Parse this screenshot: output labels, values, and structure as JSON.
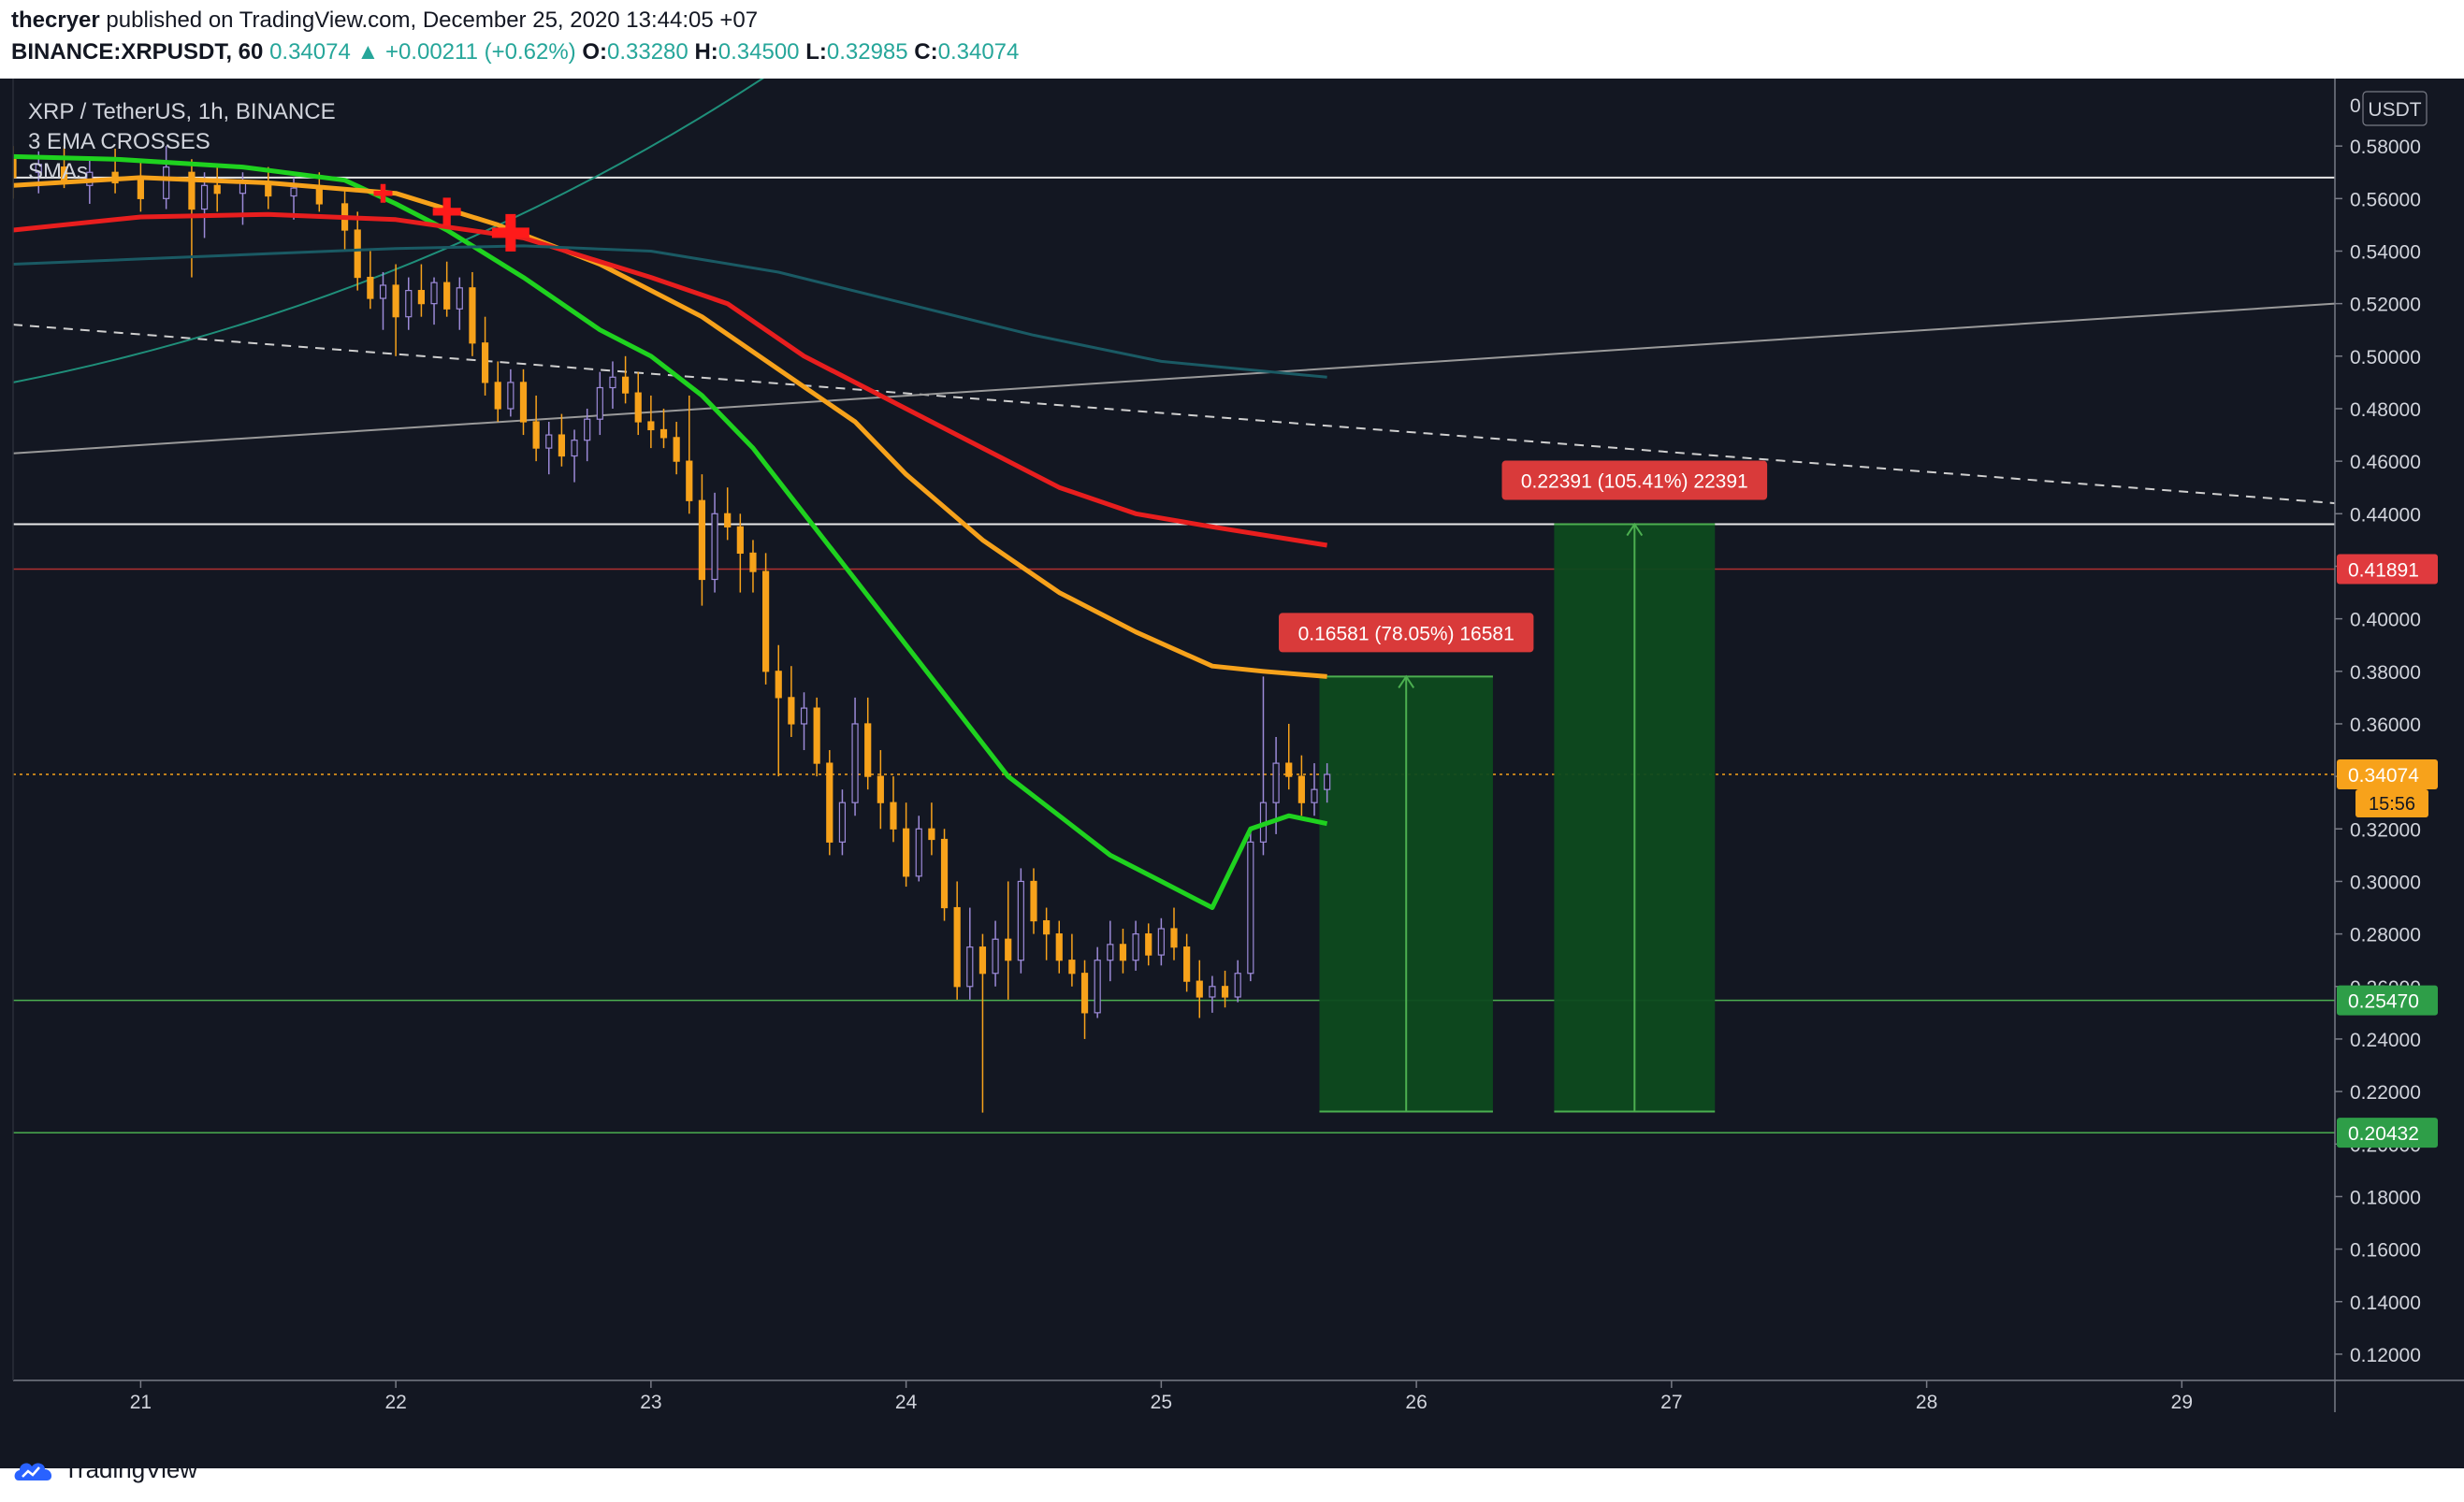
{
  "header": {
    "author": "thecryer",
    "published_text": "published on TradingView.com, December 25, 2020 13:44:05 +07",
    "symbol": "BINANCE:XRPUSDT, 60",
    "last": "0.34074",
    "change": "+0.00211 (+0.62%)",
    "o_label": "O:",
    "o_value": "0.33280",
    "h_label": "H:",
    "h_value": "0.34500",
    "l_label": "L:",
    "l_value": "0.32985",
    "c_label": "C:",
    "c_value": "0.34074"
  },
  "legend": {
    "title": "XRP / TetherUS, 1h, BINANCE",
    "indicator1": "3 EMA CROSSES",
    "indicator2": "SMAs"
  },
  "price_axis": {
    "currency": "USDT",
    "top_label": "0"
  },
  "footer": {
    "brand": "TradingView"
  },
  "colors": {
    "background": "#131722",
    "up": "#9c8ad8",
    "down": "#f7a21b",
    "ema_green": "#1fd21f",
    "ema_orange": "#f7a21b",
    "ema_red": "#e81e1e",
    "sma_teal": "#1a5a64",
    "target_fill": "#0d4a1f"
  },
  "chart_data": {
    "type": "candlestick",
    "symbol": "BINANCE:XRPUSDT",
    "timeframe": "1h",
    "ylim": [
      0.11,
      0.6
    ],
    "y_ticks": [
      "0.12000",
      "0.14000",
      "0.16000",
      "0.18000",
      "0.20000",
      "0.22000",
      "0.24000",
      "0.26000",
      "0.28000",
      "0.30000",
      "0.32000",
      "0.34000",
      "0.36000",
      "0.38000",
      "0.40000",
      "0.42000",
      "0.44000",
      "0.46000",
      "0.48000",
      "0.50000",
      "0.52000",
      "0.54000",
      "0.56000",
      "0.58000"
    ],
    "x_ticks": [
      {
        "label": "21",
        "x": 21.0
      },
      {
        "label": "22",
        "x": 22.0
      },
      {
        "label": "23",
        "x": 23.0
      },
      {
        "label": "24",
        "x": 24.0
      },
      {
        "label": "25",
        "x": 25.0
      },
      {
        "label": "26",
        "x": 26.0
      },
      {
        "label": "27",
        "x": 27.0
      },
      {
        "label": "28",
        "x": 28.0
      },
      {
        "label": "29",
        "x": 29.0
      }
    ],
    "xlim": [
      20.5,
      29.6
    ],
    "price_markers": [
      {
        "label": "0.41891",
        "value": 0.41891,
        "color": "#e03a3e",
        "line": "#b03030"
      },
      {
        "label": "0.34074",
        "value": 0.34074,
        "color": "#f7a21b",
        "line": "#f7a21b",
        "timer": "15:56"
      },
      {
        "label": "0.25470",
        "value": 0.2547,
        "color": "#2e9e48",
        "line": "#4caf50"
      },
      {
        "label": "0.20432",
        "value": 0.20432,
        "color": "#2e9e48",
        "line": "#4caf50"
      }
    ],
    "horizontal_lines": [
      {
        "value": 0.568,
        "color": "#e8e8e8"
      },
      {
        "value": 0.436,
        "color": "#e8e8e8"
      }
    ],
    "measure_boxes": [
      {
        "x0": 25.62,
        "x1": 26.3,
        "y0": 0.2124,
        "y1": 0.378,
        "label": "0.16581 (78.05%) 16581"
      },
      {
        "x0": 26.54,
        "x1": 27.17,
        "y0": 0.2124,
        "y1": 0.436,
        "label": "0.22391 (105.41%) 22391"
      }
    ],
    "candles": [
      [
        20.5,
        0.575,
        0.58,
        0.56,
        0.568
      ],
      [
        20.6,
        0.57,
        0.578,
        0.562,
        0.573
      ],
      [
        20.7,
        0.572,
        0.58,
        0.564,
        0.566
      ],
      [
        20.8,
        0.565,
        0.575,
        0.558,
        0.57
      ],
      [
        20.9,
        0.57,
        0.579,
        0.562,
        0.566
      ],
      [
        21.0,
        0.567,
        0.574,
        0.555,
        0.56
      ],
      [
        21.1,
        0.56,
        0.58,
        0.556,
        0.572
      ],
      [
        21.2,
        0.57,
        0.575,
        0.53,
        0.556
      ],
      [
        21.25,
        0.556,
        0.57,
        0.545,
        0.565
      ],
      [
        21.3,
        0.565,
        0.572,
        0.555,
        0.562
      ],
      [
        21.4,
        0.562,
        0.57,
        0.55,
        0.566
      ],
      [
        21.5,
        0.566,
        0.572,
        0.556,
        0.561
      ],
      [
        21.6,
        0.561,
        0.568,
        0.552,
        0.564
      ],
      [
        21.7,
        0.564,
        0.57,
        0.555,
        0.558
      ],
      [
        21.8,
        0.558,
        0.563,
        0.54,
        0.548
      ],
      [
        21.85,
        0.548,
        0.555,
        0.525,
        0.53
      ],
      [
        21.9,
        0.53,
        0.54,
        0.518,
        0.522
      ],
      [
        21.95,
        0.522,
        0.532,
        0.51,
        0.527
      ],
      [
        22.0,
        0.527,
        0.535,
        0.5,
        0.515
      ],
      [
        22.05,
        0.515,
        0.53,
        0.51,
        0.525
      ],
      [
        22.1,
        0.525,
        0.535,
        0.515,
        0.52
      ],
      [
        22.15,
        0.52,
        0.53,
        0.512,
        0.528
      ],
      [
        22.2,
        0.528,
        0.536,
        0.515,
        0.518
      ],
      [
        22.25,
        0.518,
        0.53,
        0.51,
        0.526
      ],
      [
        22.3,
        0.526,
        0.532,
        0.5,
        0.505
      ],
      [
        22.35,
        0.505,
        0.515,
        0.485,
        0.49
      ],
      [
        22.4,
        0.49,
        0.498,
        0.475,
        0.48
      ],
      [
        22.45,
        0.48,
        0.495,
        0.477,
        0.49
      ],
      [
        22.5,
        0.49,
        0.495,
        0.47,
        0.475
      ],
      [
        22.55,
        0.475,
        0.485,
        0.46,
        0.465
      ],
      [
        22.6,
        0.465,
        0.475,
        0.455,
        0.47
      ],
      [
        22.65,
        0.47,
        0.478,
        0.458,
        0.462
      ],
      [
        22.7,
        0.462,
        0.472,
        0.452,
        0.468
      ],
      [
        22.75,
        0.468,
        0.48,
        0.46,
        0.476
      ],
      [
        22.8,
        0.476,
        0.494,
        0.47,
        0.488
      ],
      [
        22.85,
        0.488,
        0.498,
        0.48,
        0.492
      ],
      [
        22.9,
        0.492,
        0.5,
        0.482,
        0.486
      ],
      [
        22.95,
        0.486,
        0.494,
        0.47,
        0.475
      ],
      [
        23.0,
        0.475,
        0.485,
        0.465,
        0.472
      ],
      [
        23.05,
        0.472,
        0.48,
        0.465,
        0.469
      ],
      [
        23.1,
        0.469,
        0.475,
        0.455,
        0.46
      ],
      [
        23.15,
        0.46,
        0.485,
        0.44,
        0.445
      ],
      [
        23.2,
        0.445,
        0.455,
        0.405,
        0.415
      ],
      [
        23.25,
        0.415,
        0.448,
        0.41,
        0.44
      ],
      [
        23.3,
        0.44,
        0.45,
        0.43,
        0.435
      ],
      [
        23.35,
        0.435,
        0.44,
        0.41,
        0.425
      ],
      [
        23.4,
        0.425,
        0.43,
        0.41,
        0.418
      ],
      [
        23.45,
        0.418,
        0.425,
        0.375,
        0.38
      ],
      [
        23.5,
        0.38,
        0.39,
        0.34,
        0.37
      ],
      [
        23.55,
        0.37,
        0.382,
        0.355,
        0.36
      ],
      [
        23.6,
        0.36,
        0.372,
        0.35,
        0.366
      ],
      [
        23.65,
        0.366,
        0.37,
        0.34,
        0.345
      ],
      [
        23.7,
        0.345,
        0.35,
        0.31,
        0.315
      ],
      [
        23.75,
        0.315,
        0.335,
        0.31,
        0.33
      ],
      [
        23.8,
        0.33,
        0.37,
        0.325,
        0.36
      ],
      [
        23.85,
        0.36,
        0.37,
        0.335,
        0.34
      ],
      [
        23.9,
        0.34,
        0.35,
        0.32,
        0.33
      ],
      [
        23.95,
        0.33,
        0.34,
        0.315,
        0.32
      ],
      [
        24.0,
        0.32,
        0.33,
        0.298,
        0.302
      ],
      [
        24.05,
        0.302,
        0.325,
        0.3,
        0.32
      ],
      [
        24.1,
        0.32,
        0.33,
        0.31,
        0.316
      ],
      [
        24.15,
        0.316,
        0.32,
        0.285,
        0.29
      ],
      [
        24.2,
        0.29,
        0.3,
        0.255,
        0.26
      ],
      [
        24.25,
        0.26,
        0.29,
        0.255,
        0.275
      ],
      [
        24.3,
        0.275,
        0.28,
        0.212,
        0.265
      ],
      [
        24.35,
        0.265,
        0.285,
        0.26,
        0.278
      ],
      [
        24.4,
        0.278,
        0.3,
        0.255,
        0.27
      ],
      [
        24.45,
        0.27,
        0.305,
        0.265,
        0.3
      ],
      [
        24.5,
        0.3,
        0.305,
        0.28,
        0.285
      ],
      [
        24.55,
        0.285,
        0.29,
        0.27,
        0.28
      ],
      [
        24.6,
        0.28,
        0.285,
        0.265,
        0.27
      ],
      [
        24.65,
        0.27,
        0.28,
        0.26,
        0.265
      ],
      [
        24.7,
        0.265,
        0.27,
        0.24,
        0.25
      ],
      [
        24.75,
        0.25,
        0.275,
        0.248,
        0.27
      ],
      [
        24.8,
        0.27,
        0.285,
        0.262,
        0.276
      ],
      [
        24.85,
        0.276,
        0.282,
        0.265,
        0.27
      ],
      [
        24.9,
        0.27,
        0.285,
        0.266,
        0.28
      ],
      [
        24.95,
        0.28,
        0.284,
        0.268,
        0.272
      ],
      [
        25.0,
        0.272,
        0.286,
        0.268,
        0.282
      ],
      [
        25.05,
        0.282,
        0.29,
        0.27,
        0.275
      ],
      [
        25.1,
        0.275,
        0.28,
        0.258,
        0.262
      ],
      [
        25.15,
        0.262,
        0.27,
        0.248,
        0.256
      ],
      [
        25.2,
        0.256,
        0.264,
        0.25,
        0.26
      ],
      [
        25.25,
        0.26,
        0.266,
        0.252,
        0.256
      ],
      [
        25.3,
        0.256,
        0.27,
        0.254,
        0.265
      ],
      [
        25.35,
        0.265,
        0.32,
        0.262,
        0.315
      ],
      [
        25.4,
        0.315,
        0.378,
        0.31,
        0.33
      ],
      [
        25.45,
        0.33,
        0.355,
        0.318,
        0.345
      ],
      [
        25.5,
        0.345,
        0.36,
        0.335,
        0.34
      ],
      [
        25.55,
        0.34,
        0.348,
        0.325,
        0.33
      ],
      [
        25.6,
        0.33,
        0.345,
        0.325,
        0.335
      ],
      [
        25.65,
        0.335,
        0.345,
        0.33,
        0.34074
      ]
    ],
    "indicators": [
      {
        "name": "EMA green",
        "color": "#1fd21f",
        "width": 5,
        "points": [
          [
            20.5,
            0.576
          ],
          [
            20.9,
            0.575
          ],
          [
            21.4,
            0.572
          ],
          [
            21.8,
            0.567
          ],
          [
            22.0,
            0.558
          ],
          [
            22.2,
            0.548
          ],
          [
            22.5,
            0.53
          ],
          [
            22.8,
            0.51
          ],
          [
            23.0,
            0.5
          ],
          [
            23.2,
            0.485
          ],
          [
            23.4,
            0.465
          ],
          [
            23.6,
            0.44
          ],
          [
            23.8,
            0.415
          ],
          [
            24.0,
            0.39
          ],
          [
            24.2,
            0.365
          ],
          [
            24.4,
            0.34
          ],
          [
            24.6,
            0.325
          ],
          [
            24.8,
            0.31
          ],
          [
            25.0,
            0.3
          ],
          [
            25.2,
            0.29
          ],
          [
            25.35,
            0.32
          ],
          [
            25.5,
            0.325
          ],
          [
            25.65,
            0.322
          ]
        ]
      },
      {
        "name": "EMA orange",
        "color": "#f7a21b",
        "width": 5,
        "points": [
          [
            20.5,
            0.565
          ],
          [
            21.0,
            0.568
          ],
          [
            21.5,
            0.566
          ],
          [
            22.0,
            0.562
          ],
          [
            22.4,
            0.55
          ],
          [
            22.8,
            0.535
          ],
          [
            23.2,
            0.515
          ],
          [
            23.5,
            0.495
          ],
          [
            23.8,
            0.475
          ],
          [
            24.0,
            0.455
          ],
          [
            24.3,
            0.43
          ],
          [
            24.6,
            0.41
          ],
          [
            24.9,
            0.395
          ],
          [
            25.2,
            0.382
          ],
          [
            25.4,
            0.38
          ],
          [
            25.65,
            0.378
          ]
        ]
      },
      {
        "name": "EMA red",
        "color": "#e81e1e",
        "width": 5,
        "points": [
          [
            20.5,
            0.548
          ],
          [
            21.0,
            0.553
          ],
          [
            21.5,
            0.554
          ],
          [
            22.0,
            0.552
          ],
          [
            22.5,
            0.545
          ],
          [
            23.0,
            0.53
          ],
          [
            23.3,
            0.52
          ],
          [
            23.6,
            0.5
          ],
          [
            24.0,
            0.48
          ],
          [
            24.3,
            0.465
          ],
          [
            24.6,
            0.45
          ],
          [
            24.9,
            0.44
          ],
          [
            25.2,
            0.435
          ],
          [
            25.65,
            0.428
          ]
        ]
      },
      {
        "name": "SMA teal",
        "color": "#1a5a64",
        "width": 3,
        "points": [
          [
            20.5,
            0.535
          ],
          [
            21.0,
            0.537
          ],
          [
            21.5,
            0.539
          ],
          [
            22.0,
            0.541
          ],
          [
            22.5,
            0.542
          ],
          [
            23.0,
            0.54
          ],
          [
            23.5,
            0.532
          ],
          [
            24.0,
            0.52
          ],
          [
            24.5,
            0.508
          ],
          [
            25.0,
            0.498
          ],
          [
            25.65,
            0.492
          ]
        ]
      }
    ],
    "trendlines": [
      {
        "from": [
          20.5,
          0.512
        ],
        "to": [
          29.6,
          0.444
        ],
        "color": "#cfcfcf",
        "dashed": true
      },
      {
        "from": [
          20.5,
          0.463
        ],
        "to": [
          29.6,
          0.52
        ],
        "color": "#9a9a9a",
        "dashed": false
      },
      {
        "from": [
          20.5,
          0.49
        ],
        "to": [
          23.8,
          0.63
        ],
        "color": "#1f8f7a",
        "dashed": false,
        "curve": true
      }
    ],
    "markers": [
      {
        "x": 21.95,
        "y": 0.562,
        "size": 10
      },
      {
        "x": 22.2,
        "y": 0.555,
        "size": 15
      },
      {
        "x": 22.45,
        "y": 0.547,
        "size": 20
      }
    ]
  }
}
